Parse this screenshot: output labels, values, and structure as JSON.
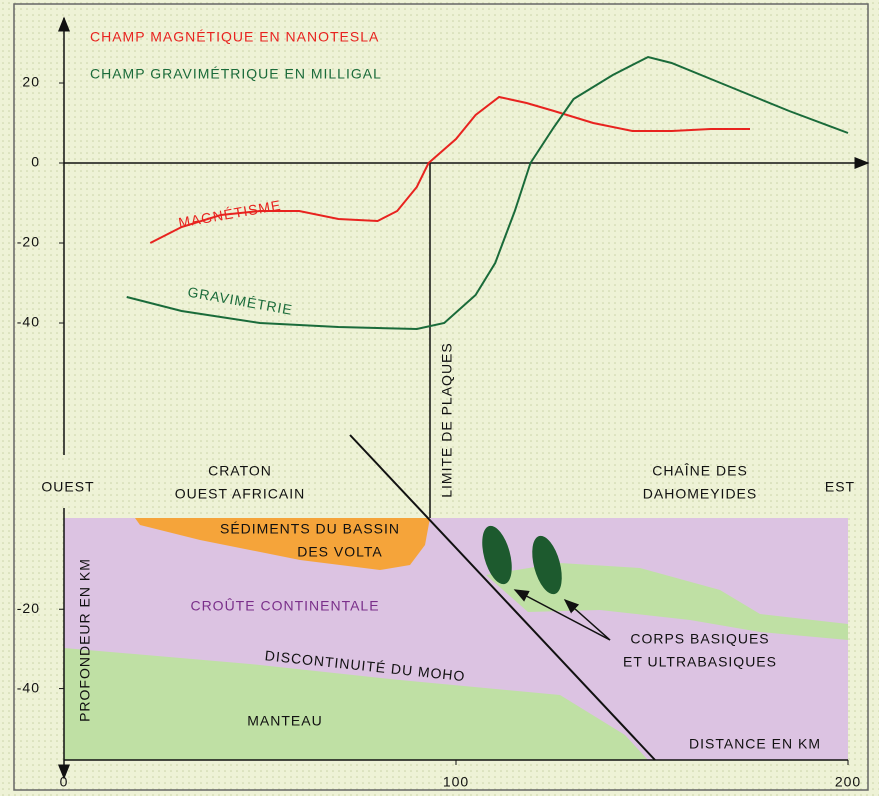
{
  "chart_data": [
    {
      "type": "line",
      "y_labels": [
        "CHAMP MAGNÉTIQUE EN NANOTESLA",
        "CHAMP GRAVIMÉTRIQUE EN MILLIGAL"
      ],
      "xlim": [
        0,
        200
      ],
      "ylim": [
        -73,
        36
      ],
      "yticks": [
        20,
        0,
        -20,
        -40
      ],
      "series": [
        {
          "name": "MAGNÉTISME",
          "color": "#e8231f",
          "x": [
            22,
            30,
            40,
            50,
            60,
            70,
            80,
            85,
            90,
            93,
            100,
            105,
            111,
            118,
            125,
            135,
            145,
            155,
            165,
            175
          ],
          "values": [
            -20,
            -16,
            -13,
            -12,
            -12,
            -14,
            -14.5,
            -12,
            -6,
            0,
            6,
            12,
            16.5,
            15,
            13,
            10,
            8,
            8,
            8.5,
            8.5
          ]
        },
        {
          "name": "GRAVIMÉTRIE",
          "color": "#1a6b3a",
          "x": [
            16,
            30,
            50,
            70,
            90,
            97,
            105,
            110,
            115,
            119,
            125,
            130,
            140,
            149,
            155,
            165,
            175,
            185,
            200
          ],
          "values": [
            -33.5,
            -37,
            -40,
            -41,
            -41.5,
            -40,
            -33,
            -25,
            -12,
            0,
            9,
            16,
            22,
            26.5,
            25,
            21,
            17,
            13,
            7.5
          ]
        }
      ]
    },
    {
      "type": "section",
      "xlim": [
        0,
        200
      ],
      "xticks": [
        0,
        100,
        200
      ],
      "ylim": [
        -58,
        3
      ],
      "yticks": [
        -20,
        -40
      ],
      "ylabel": "PROFONDEUR EN KM",
      "xlabel": "DISTANCE EN KM",
      "annotations": [
        "OUEST",
        "EST",
        "CRATON",
        "OUEST AFRICAIN",
        "CHAÎNE DES",
        "DAHOMEYIDES",
        "SÉDIMENTS DU BASSIN",
        "DES VOLTA",
        "CROÛTE CONTINENTALE",
        "DISCONTINUITÉ DU MOHO",
        "MANTEAU",
        "CORPS BASIQUES",
        "ET ULTRABASIQUES",
        "LIMITE DE PLAQUES"
      ]
    }
  ]
}
